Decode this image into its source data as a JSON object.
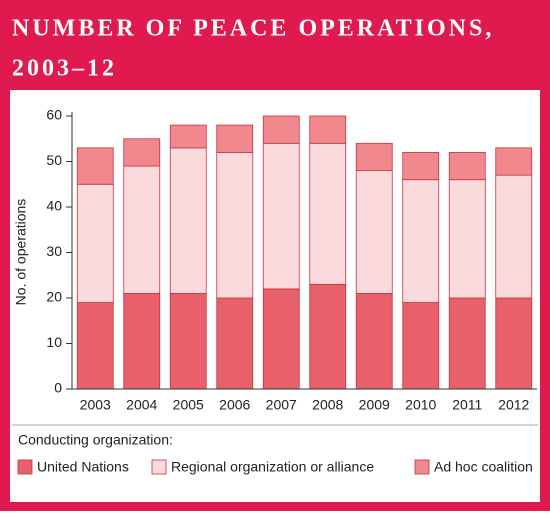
{
  "chart_data": {
    "type": "stacked_bar",
    "title": [
      "NUMBER OF PEACE OPERATIONS,",
      "2003–12"
    ],
    "ylabel": "No. of operations",
    "legend_title": "Conducting organization:",
    "categories": [
      "2003",
      "2004",
      "2005",
      "2006",
      "2007",
      "2008",
      "2009",
      "2010",
      "2011",
      "2012"
    ],
    "series": [
      {
        "name": "United Nations",
        "color": "#e8606a",
        "values": [
          19,
          21,
          21,
          20,
          22,
          23,
          21,
          19,
          20,
          20
        ]
      },
      {
        "name": "Regional organization or alliance",
        "color": "#fadadd",
        "values": [
          26,
          28,
          32,
          32,
          32,
          31,
          27,
          27,
          26,
          27
        ]
      },
      {
        "name": "Ad hoc coalition",
        "color": "#f0888e",
        "values": [
          8,
          6,
          5,
          6,
          6,
          6,
          6,
          6,
          6,
          6
        ]
      }
    ],
    "ylim": [
      0,
      60
    ],
    "yticks": [
      0,
      10,
      20,
      30,
      40,
      50,
      60
    ],
    "grid": false
  }
}
